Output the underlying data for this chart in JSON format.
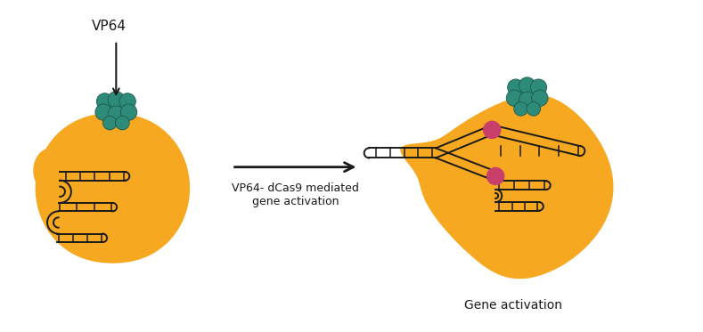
{
  "bg_color": "#ffffff",
  "cell_color": "#F5A820",
  "teal_color": "#2E8B7A",
  "teal_edge": "#1a5a4a",
  "pink_color": "#C8406A",
  "dna_color": "#1a1a1a",
  "text_color": "#1a1a1a",
  "vp64_label": "VP64",
  "arrow_label": "VP64- dCas9 mediated\ngene activation",
  "gene_label": "Gene activation",
  "fig_width": 7.89,
  "fig_height": 3.73,
  "dpi": 100
}
